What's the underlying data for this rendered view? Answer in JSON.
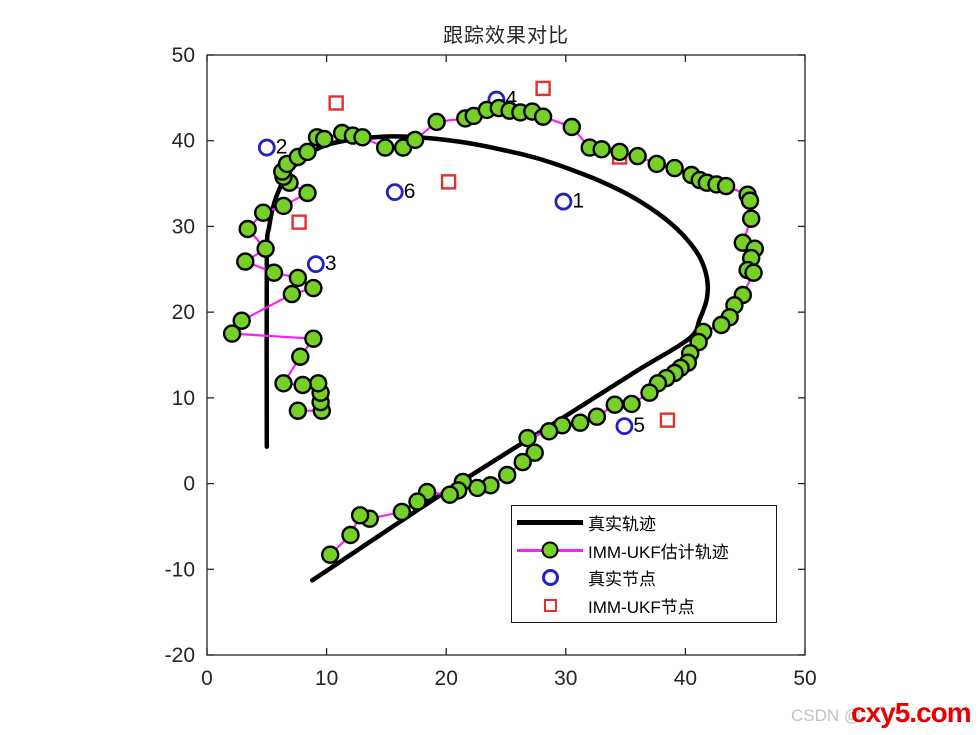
{
  "title": "跟踪效果对比",
  "watermark": {
    "prefix": "CSDN @",
    "brand": "cxy5.com"
  },
  "colors": {
    "axis": "#262626",
    "tick_label": "#262626",
    "title": "#262626",
    "true_line": "#000000",
    "est_line": "#f522f5",
    "est_marker_fill": "#77d028",
    "est_marker_edge": "#000000",
    "true_node": "#2121c4",
    "ukf_node": "#e03030",
    "watermark_gray": "#c3c3c3",
    "watermark_red": "#e80000"
  },
  "chart_data": {
    "type": "line",
    "title": "跟踪效果对比",
    "xlabel": "",
    "ylabel": "",
    "xlim": [
      0,
      50
    ],
    "ylim": [
      -20,
      50
    ],
    "xticks": [
      0,
      10,
      20,
      30,
      40,
      50
    ],
    "yticks": [
      -20,
      -10,
      0,
      10,
      20,
      30,
      40,
      50
    ],
    "grid": false,
    "legend": {
      "position": "lower right",
      "entries": [
        {
          "label": "真实轨迹",
          "swatch": "black-thick-line"
        },
        {
          "label": "IMM-UKF估计轨迹",
          "swatch": "magenta-line-green-dot"
        },
        {
          "label": "真实节点",
          "swatch": "blue-open-circle"
        },
        {
          "label": "IMM-UKF节点",
          "swatch": "red-open-square"
        }
      ]
    },
    "series": [
      {
        "name": "真实轨迹",
        "type": "smooth-line",
        "color": "#000000",
        "width": 4.5,
        "points": [
          [
            5.0,
            4.3
          ],
          [
            5.0,
            26.0
          ],
          [
            5.2,
            30.0
          ],
          [
            5.8,
            33.5
          ],
          [
            6.8,
            36.2
          ],
          [
            8.2,
            38.2
          ],
          [
            10.0,
            39.5
          ],
          [
            12.5,
            40.2
          ],
          [
            15.5,
            40.5
          ],
          [
            18.5,
            40.3
          ],
          [
            21.5,
            39.8
          ],
          [
            24.5,
            39.0
          ],
          [
            27.5,
            38.0
          ],
          [
            30.5,
            36.6
          ],
          [
            33.5,
            34.9
          ],
          [
            36.0,
            33.1
          ],
          [
            38.3,
            30.9
          ],
          [
            40.0,
            28.7
          ],
          [
            41.2,
            26.4
          ],
          [
            41.8,
            24.0
          ],
          [
            41.8,
            21.6
          ],
          [
            41.2,
            19.2
          ],
          [
            40.3,
            16.9
          ],
          [
            36.0,
            13.2
          ],
          [
            30.0,
            7.9
          ],
          [
            20.0,
            -0.9
          ],
          [
            8.8,
            -11.3
          ]
        ]
      },
      {
        "name": "IMM-UKF估计轨迹",
        "type": "line-markers",
        "color": "#f522f5",
        "width": 2.2,
        "marker": "filled-circle",
        "marker_radius": 8,
        "points": [
          [
            7.6,
            8.5
          ],
          [
            9.6,
            8.5
          ],
          [
            9.5,
            9.5
          ],
          [
            9.5,
            10.6
          ],
          [
            9.3,
            11.7
          ],
          [
            8.0,
            11.5
          ],
          [
            6.4,
            11.7
          ],
          [
            7.8,
            14.8
          ],
          [
            8.9,
            16.9
          ],
          [
            2.1,
            17.5
          ],
          [
            2.9,
            19.0
          ],
          [
            7.1,
            22.1
          ],
          [
            8.9,
            22.8
          ],
          [
            7.6,
            24.0
          ],
          [
            5.6,
            24.6
          ],
          [
            3.2,
            25.9
          ],
          [
            4.9,
            27.4
          ],
          [
            3.4,
            29.7
          ],
          [
            4.7,
            31.6
          ],
          [
            6.4,
            32.4
          ],
          [
            8.4,
            33.9
          ],
          [
            6.9,
            35.1
          ],
          [
            6.4,
            35.8
          ],
          [
            6.3,
            36.4
          ],
          [
            6.7,
            37.3
          ],
          [
            7.6,
            38.1
          ],
          [
            8.4,
            38.7
          ],
          [
            9.2,
            40.4
          ],
          [
            9.8,
            40.2
          ],
          [
            11.3,
            40.9
          ],
          [
            12.2,
            40.6
          ],
          [
            13.0,
            40.4
          ],
          [
            14.9,
            39.2
          ],
          [
            16.4,
            39.2
          ],
          [
            17.4,
            40.1
          ],
          [
            19.2,
            42.2
          ],
          [
            21.6,
            42.6
          ],
          [
            22.3,
            42.9
          ],
          [
            23.4,
            43.6
          ],
          [
            24.4,
            43.8
          ],
          [
            25.3,
            43.5
          ],
          [
            26.2,
            43.3
          ],
          [
            27.2,
            43.4
          ],
          [
            28.1,
            42.8
          ],
          [
            30.5,
            41.6
          ],
          [
            32.0,
            39.2
          ],
          [
            33.0,
            39.0
          ],
          [
            34.5,
            38.7
          ],
          [
            36.0,
            38.2
          ],
          [
            37.6,
            37.3
          ],
          [
            39.1,
            36.8
          ],
          [
            40.5,
            36.0
          ],
          [
            41.2,
            35.4
          ],
          [
            41.8,
            35.1
          ],
          [
            42.6,
            34.9
          ],
          [
            43.4,
            34.7
          ],
          [
            45.2,
            33.7
          ],
          [
            45.4,
            33.0
          ],
          [
            45.5,
            30.9
          ],
          [
            44.8,
            28.1
          ],
          [
            45.8,
            27.4
          ],
          [
            45.5,
            26.3
          ],
          [
            45.2,
            24.9
          ],
          [
            45.7,
            24.6
          ],
          [
            44.8,
            22.0
          ],
          [
            44.1,
            20.8
          ],
          [
            43.7,
            19.4
          ],
          [
            43.0,
            18.5
          ],
          [
            41.5,
            17.7
          ],
          [
            41.1,
            16.5
          ],
          [
            40.4,
            15.2
          ],
          [
            40.2,
            14.1
          ],
          [
            39.6,
            13.5
          ],
          [
            39.1,
            12.9
          ],
          [
            38.4,
            12.3
          ],
          [
            37.7,
            11.7
          ],
          [
            37.0,
            10.6
          ],
          [
            35.5,
            9.3
          ],
          [
            34.1,
            9.2
          ],
          [
            32.6,
            7.8
          ],
          [
            31.2,
            7.1
          ],
          [
            29.7,
            6.8
          ],
          [
            28.6,
            6.1
          ],
          [
            26.8,
            5.3
          ],
          [
            27.4,
            3.6
          ],
          [
            26.4,
            2.5
          ],
          [
            25.1,
            1.0
          ],
          [
            23.7,
            -0.2
          ],
          [
            22.6,
            -0.5
          ],
          [
            21.4,
            0.2
          ],
          [
            21.0,
            -0.8
          ],
          [
            20.3,
            -1.3
          ],
          [
            18.4,
            -1.0
          ],
          [
            17.6,
            -2.1
          ],
          [
            16.3,
            -3.3
          ],
          [
            13.6,
            -4.1
          ],
          [
            12.8,
            -3.7
          ],
          [
            12.0,
            -6.0
          ],
          [
            10.3,
            -8.3
          ]
        ]
      },
      {
        "name": "真实节点",
        "type": "scatter",
        "marker": "open-circle",
        "color": "#2121c4",
        "marker_radius": 7.5,
        "points": [
          [
            29.8,
            32.9
          ],
          [
            5.0,
            39.2
          ],
          [
            9.1,
            25.6
          ],
          [
            24.2,
            44.8
          ],
          [
            34.9,
            6.7
          ],
          [
            15.7,
            34.0
          ]
        ],
        "labels": [
          "1",
          "2",
          "3",
          "4",
          "5",
          "6"
        ]
      },
      {
        "name": "IMM-UKF节点",
        "type": "scatter",
        "marker": "open-square",
        "color": "#e03030",
        "marker_size": 13,
        "points": [
          [
            10.8,
            44.4
          ],
          [
            28.1,
            46.1
          ],
          [
            20.2,
            35.2
          ],
          [
            7.7,
            30.5
          ],
          [
            34.5,
            38.1
          ],
          [
            38.5,
            7.4
          ]
        ]
      }
    ]
  }
}
